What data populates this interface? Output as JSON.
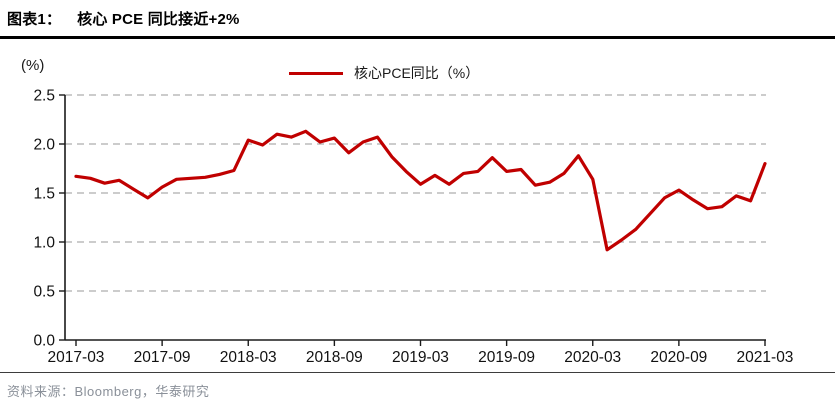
{
  "header": {
    "figure_label": "图表1：",
    "title": "核心 PCE 同比接近+2%"
  },
  "unit_label": "(%)",
  "legend": {
    "label": "核心PCE同比（%）"
  },
  "footer": {
    "source": "资料来源：Bloomberg，华泰研究"
  },
  "colors": {
    "line": "#C00000",
    "grid": "#ADADAD",
    "axis": "#1A1A1A",
    "tick_text": "#111111",
    "footer_text": "#8A9099"
  },
  "chart_data": {
    "type": "line",
    "title": "核心 PCE 同比接近+2%",
    "ylabel": "(%)",
    "xlabel": "",
    "ylim": [
      0.0,
      2.5
    ],
    "y_tick_labels": [
      "0.0",
      "0.5",
      "1.0",
      "1.5",
      "2.0",
      "2.5"
    ],
    "grid": "horizontal-dashed",
    "legend_position": "top-center",
    "x_tick_every": 6,
    "x_tick_labels": [
      "2017-03",
      "2017-09",
      "2018-03",
      "2018-09",
      "2019-03",
      "2019-09",
      "2020-03",
      "2020-09",
      "2021-03"
    ],
    "x": [
      "2017-03",
      "2017-04",
      "2017-05",
      "2017-06",
      "2017-07",
      "2017-08",
      "2017-09",
      "2017-10",
      "2017-11",
      "2017-12",
      "2018-01",
      "2018-02",
      "2018-03",
      "2018-04",
      "2018-05",
      "2018-06",
      "2018-07",
      "2018-08",
      "2018-09",
      "2018-10",
      "2018-11",
      "2018-12",
      "2019-01",
      "2019-02",
      "2019-03",
      "2019-04",
      "2019-05",
      "2019-06",
      "2019-07",
      "2019-08",
      "2019-09",
      "2019-10",
      "2019-11",
      "2019-12",
      "2020-01",
      "2020-02",
      "2020-03",
      "2020-04",
      "2020-05",
      "2020-06",
      "2020-07",
      "2020-08",
      "2020-09",
      "2020-10",
      "2020-11",
      "2020-12",
      "2021-01",
      "2021-02",
      "2021-03"
    ],
    "series": [
      {
        "name": "核心PCE同比（%）",
        "color": "#C00000",
        "values": [
          1.67,
          1.65,
          1.6,
          1.63,
          1.54,
          1.45,
          1.56,
          1.64,
          1.65,
          1.66,
          1.69,
          1.73,
          2.04,
          1.99,
          2.1,
          2.07,
          2.13,
          2.02,
          2.06,
          1.91,
          2.02,
          2.07,
          1.87,
          1.72,
          1.59,
          1.68,
          1.59,
          1.7,
          1.72,
          1.86,
          1.72,
          1.74,
          1.58,
          1.61,
          1.7,
          1.88,
          1.64,
          0.92,
          1.02,
          1.13,
          1.29,
          1.45,
          1.53,
          1.43,
          1.34,
          1.36,
          1.47,
          1.42,
          1.8
        ]
      }
    ]
  }
}
